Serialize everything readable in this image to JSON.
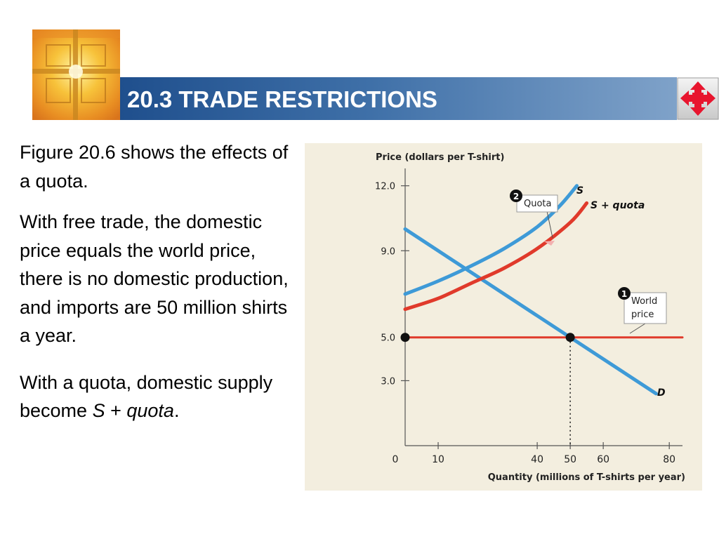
{
  "header": {
    "title": "20.3 TRADE RESTRICTIONS",
    "accent_colors": {
      "bar_start": "#1f4f8d",
      "bar_end": "#7fa2c9",
      "nav_icon": "#e8152e"
    },
    "logo_icon": "cross-window-logo-icon",
    "nav_icon": "four-way-arrows-icon"
  },
  "body": {
    "p1": "Figure 20.6 shows the effects of a quota.",
    "p2": "With free trade, the domestic price equals the world price, there is no domestic production, and imports are 50 million shirts a year.",
    "p3_prefix": "With a quota, domestic supply become ",
    "p3_s": "S",
    "p3_plus": " + ",
    "p3_quota": "quota",
    "p3_period": "."
  },
  "chart_data": {
    "type": "line",
    "ylabel": "Price (dollars per T-shirt)",
    "xlabel": "Quantity (millions of T-shirts per year)",
    "origin_label": "0",
    "xlim": [
      0,
      84
    ],
    "ylim": [
      0,
      12.8
    ],
    "x_ticks": [
      10,
      40,
      50,
      60,
      80
    ],
    "x_tick_labels": [
      "10",
      "40",
      "50",
      "60",
      "80"
    ],
    "y_ticks": [
      12,
      9,
      5,
      3
    ],
    "y_tick_labels": [
      "12.0",
      "9.0",
      "5.0",
      "3.0"
    ],
    "series": [
      {
        "name": "S",
        "color": "#3e9ad7",
        "points": [
          [
            0,
            7.0
          ],
          [
            10,
            7.6
          ],
          [
            20,
            8.3
          ],
          [
            30,
            9.1
          ],
          [
            40,
            10.1
          ],
          [
            47,
            11.1
          ],
          [
            52,
            12.0
          ]
        ]
      },
      {
        "name": "S + quota",
        "color": "#e03a2b",
        "points": [
          [
            0,
            6.3
          ],
          [
            10,
            6.8
          ],
          [
            20,
            7.5
          ],
          [
            30,
            8.2
          ],
          [
            40,
            9.1
          ],
          [
            50,
            10.3
          ],
          [
            55,
            11.2
          ]
        ]
      },
      {
        "name": "D",
        "color": "#3e9ad7",
        "points": [
          [
            0,
            10.0
          ],
          [
            50,
            5.0
          ],
          [
            76,
            2.4
          ]
        ]
      },
      {
        "name": "World price",
        "color": "#e03a2b",
        "points": [
          [
            0,
            5.0
          ],
          [
            84,
            5.0
          ]
        ]
      }
    ],
    "equilibrium_points": [
      [
        0,
        5.0
      ],
      [
        50,
        5.0
      ]
    ],
    "dotted_drop_x": 50,
    "annotations": [
      {
        "number": "1",
        "text_line1": "World",
        "text_line2": "price"
      },
      {
        "number": "2",
        "text": "Quota"
      }
    ],
    "panel_color": "#f3eedf"
  }
}
